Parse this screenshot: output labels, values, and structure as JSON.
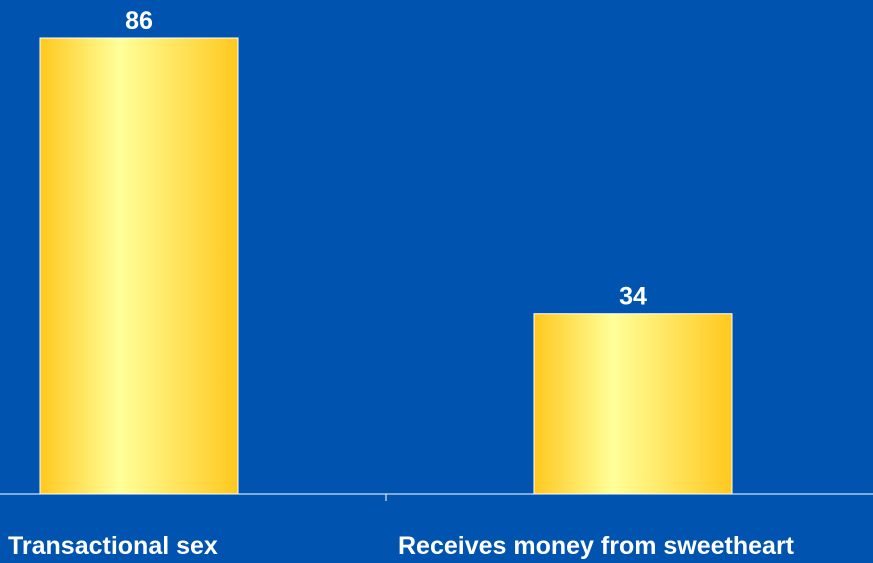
{
  "chart_data": {
    "type": "bar",
    "categories": [
      "Transactional sex",
      "Receives money from sweetheart"
    ],
    "values": [
      86,
      34
    ],
    "title": "",
    "xlabel": "",
    "ylabel": "",
    "ylim": [
      0,
      100
    ],
    "grid": false,
    "legend": "none",
    "data_labels": [
      "86",
      "34"
    ]
  },
  "colors": {
    "background": "#0054b0",
    "bar_light": "#ffff9a",
    "bar_dark": "#ffc81e",
    "text": "#ffffff",
    "axis": "#ffffff"
  }
}
